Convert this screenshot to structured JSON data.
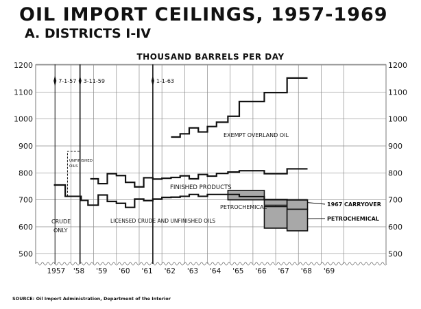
{
  "title": "OIL IMPORT CEILINGS, 1957-1969",
  "subtitle": "A. DISTRICTS I-IV",
  "source": "SOURCE: Oil Import Administration, Department of the Interior",
  "chart_data": {
    "type": "line",
    "ylabel": "THOUSAND BARRELS PER DAY",
    "ylim": [
      450,
      1200
    ],
    "y_ticks": [
      "1200",
      "1100",
      "1000",
      "900",
      "800",
      "700",
      "600",
      "500"
    ],
    "x_tick_labels": [
      "1957",
      "'58",
      "'59",
      "'60",
      "'61",
      "'62",
      "'63",
      "'64",
      "'65",
      "'66",
      "'67",
      "'68",
      "'69"
    ],
    "x_tick_positions": [
      1957,
      1958,
      1959,
      1960,
      1961,
      1962,
      1963,
      1964,
      1965,
      1966,
      1967,
      1968,
      1969
    ],
    "xlim": [
      1956.6,
      1972
    ],
    "step_lines": [
      {
        "name": "licensed",
        "points": [
          [
            1957.4,
            755
          ],
          [
            1957.9,
            755
          ],
          [
            1957.9,
            713
          ],
          [
            1958.6,
            713
          ],
          [
            1958.6,
            698
          ],
          [
            1958.9,
            698
          ],
          [
            1958.9,
            680
          ],
          [
            1959.35,
            680
          ],
          [
            1959.35,
            718
          ],
          [
            1959.75,
            718
          ],
          [
            1959.75,
            694
          ],
          [
            1960.15,
            694
          ],
          [
            1960.15,
            687
          ],
          [
            1960.55,
            687
          ],
          [
            1960.55,
            672
          ],
          [
            1960.95,
            672
          ],
          [
            1960.95,
            703
          ],
          [
            1961.35,
            703
          ],
          [
            1961.35,
            697
          ],
          [
            1961.75,
            697
          ],
          [
            1961.75,
            703
          ],
          [
            1962.15,
            703
          ],
          [
            1962.15,
            709
          ],
          [
            1962.55,
            709
          ],
          [
            1962.55,
            710
          ],
          [
            1962.95,
            710
          ],
          [
            1962.95,
            713
          ],
          [
            1963.35,
            713
          ],
          [
            1963.35,
            720
          ],
          [
            1963.75,
            720
          ],
          [
            1963.75,
            713
          ],
          [
            1964.15,
            713
          ],
          [
            1964.15,
            720
          ],
          [
            1964.55,
            720
          ],
          [
            1964.55,
            720
          ],
          [
            1965.55,
            720
          ],
          [
            1965.55,
            712
          ],
          [
            1966.65,
            712
          ],
          [
            1966.65,
            701
          ],
          [
            1967.65,
            701
          ],
          [
            1967.65,
            700
          ],
          [
            1968.55,
            700
          ]
        ]
      },
      {
        "name": "finished",
        "points": [
          [
            1959.0,
            778
          ],
          [
            1959.35,
            778
          ],
          [
            1959.35,
            760
          ],
          [
            1959.75,
            760
          ],
          [
            1959.75,
            797
          ],
          [
            1960.15,
            797
          ],
          [
            1960.15,
            790
          ],
          [
            1960.55,
            790
          ],
          [
            1960.55,
            765
          ],
          [
            1960.95,
            765
          ],
          [
            1960.95,
            748
          ],
          [
            1961.35,
            748
          ],
          [
            1961.35,
            782
          ],
          [
            1961.75,
            782
          ],
          [
            1961.75,
            777
          ],
          [
            1962.15,
            777
          ],
          [
            1962.15,
            780
          ],
          [
            1962.55,
            780
          ],
          [
            1962.55,
            783
          ],
          [
            1962.95,
            783
          ],
          [
            1962.95,
            789
          ],
          [
            1963.35,
            789
          ],
          [
            1963.35,
            778
          ],
          [
            1963.75,
            778
          ],
          [
            1963.75,
            794
          ],
          [
            1964.15,
            794
          ],
          [
            1964.15,
            788
          ],
          [
            1964.55,
            788
          ],
          [
            1964.55,
            798
          ],
          [
            1965.05,
            798
          ],
          [
            1965.05,
            803
          ],
          [
            1965.55,
            803
          ],
          [
            1965.55,
            808
          ],
          [
            1966.65,
            808
          ],
          [
            1966.65,
            797
          ],
          [
            1967.65,
            797
          ],
          [
            1967.65,
            815
          ],
          [
            1968.55,
            815
          ]
        ]
      },
      {
        "name": "overland",
        "points": [
          [
            1962.55,
            933
          ],
          [
            1962.95,
            933
          ],
          [
            1962.95,
            945
          ],
          [
            1963.35,
            945
          ],
          [
            1963.35,
            967
          ],
          [
            1963.75,
            967
          ],
          [
            1963.75,
            952
          ],
          [
            1964.15,
            952
          ],
          [
            1964.15,
            972
          ],
          [
            1964.55,
            972
          ],
          [
            1964.55,
            988
          ],
          [
            1965.05,
            988
          ],
          [
            1965.05,
            1010
          ],
          [
            1965.55,
            1010
          ],
          [
            1965.55,
            1065
          ],
          [
            1966.65,
            1065
          ],
          [
            1966.65,
            1098
          ],
          [
            1967.65,
            1098
          ],
          [
            1967.65,
            1152
          ],
          [
            1968.55,
            1152
          ]
        ]
      },
      {
        "name": "unfinished-dashed",
        "points": [
          [
            1958.0,
            713
          ],
          [
            1958.0,
            880
          ],
          [
            1958.55,
            880
          ],
          [
            1958.55,
            713
          ]
        ]
      }
    ],
    "shaded_regions": [
      {
        "name": "petrochemical-1966-67",
        "x": [
          1965.05,
          1966.65
        ],
        "y": [
          700,
          735
        ]
      },
      {
        "name": "carryover-1968",
        "x": [
          1966.65,
          1967.65
        ],
        "y": [
          700,
          680
        ]
      },
      {
        "name": "carryover-1969",
        "x": [
          1967.65,
          1968.55
        ],
        "y": [
          700,
          665
        ]
      },
      {
        "name": "petrochemical-1968",
        "x": [
          1966.65,
          1967.65
        ],
        "y": [
          675,
          595
        ]
      },
      {
        "name": "petrochemical-1969",
        "x": [
          1967.65,
          1968.55
        ],
        "y": [
          665,
          585
        ]
      }
    ],
    "decree_lines": [
      {
        "x": 1957.45,
        "label": "7-1-57"
      },
      {
        "x": 1958.55,
        "label": "3-11-59"
      },
      {
        "x": 1961.75,
        "label": "1-1-63"
      }
    ],
    "annotations": {
      "unfinished_oils": [
        "UNFINISHED",
        "OILS"
      ],
      "exempt_overland": "EXEMPT OVERLAND OIL",
      "finished_products": "FINISHED PRODUCTS",
      "petrochemical_mid": "PETROCHEMICAL",
      "licensed_crude": "LICENSED CRUDE AND UNFINISHED OILS",
      "crude_only": [
        "CRUDE",
        "ONLY"
      ],
      "carryover_1967": "1967 CARRYOVER",
      "petrochemical_right": "PETROCHEMICAL"
    },
    "grid": true,
    "legend": "none"
  }
}
